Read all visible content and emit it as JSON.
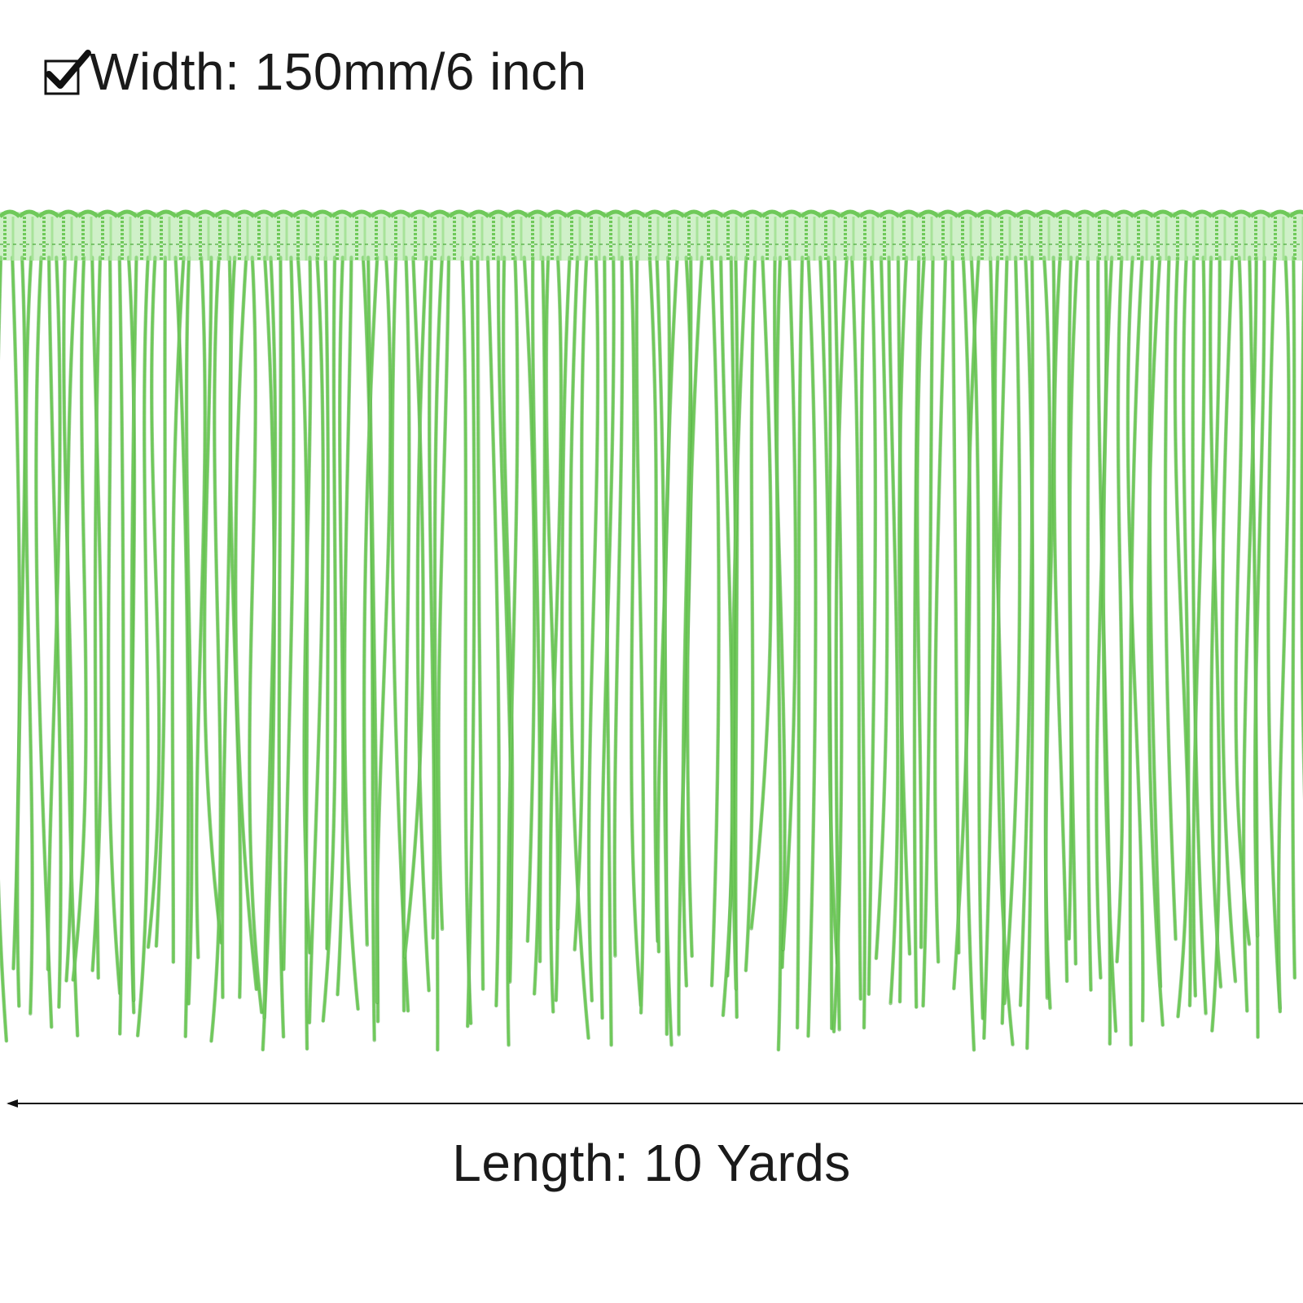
{
  "spec": {
    "icon": "checkbox-checked-icon",
    "width_text": "Width: 150mm/6 inch"
  },
  "product": {
    "description_icon": "green-chainette-fringe-trim",
    "color": "#6fc95a",
    "color_dark": "#4aa83a",
    "color_light": "#a8e39a"
  },
  "measurement": {
    "length_text": "Length: 10 Yards",
    "arrow_icon": "left-arrow-icon"
  }
}
